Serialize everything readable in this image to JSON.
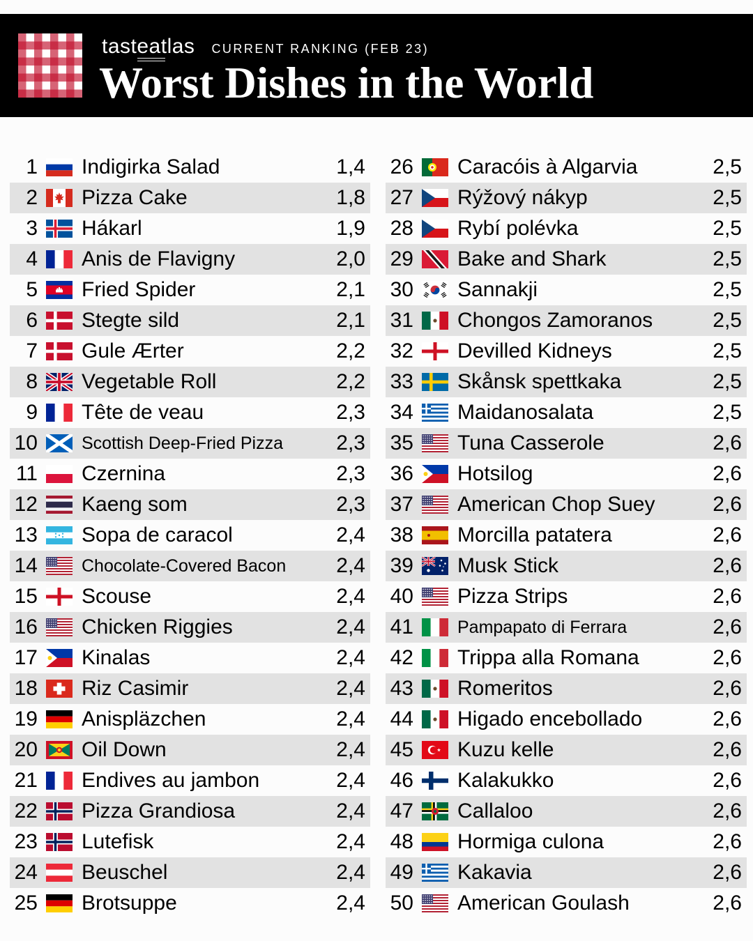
{
  "header": {
    "brand": {
      "pre": "tast",
      "underlined": "eat",
      "post": "las"
    },
    "ranking_label": "CURRENT RANKING (FEB 23)",
    "title": "Worst Dishes in the World"
  },
  "colors": {
    "header_bg": "#000000",
    "row_alt_bg": "#e2e2e2",
    "text": "#000000",
    "gingham_red": "#c1102d"
  },
  "list": {
    "rows": [
      {
        "rank": 1,
        "country": "Russia",
        "dish": "Indigirka Salad",
        "rating": "1,4"
      },
      {
        "rank": 2,
        "country": "Canada",
        "dish": "Pizza Cake",
        "rating": "1,8"
      },
      {
        "rank": 3,
        "country": "Iceland",
        "dish": "Hákarl",
        "rating": "1,9"
      },
      {
        "rank": 4,
        "country": "France",
        "dish": "Anis de Flavigny",
        "rating": "2,0"
      },
      {
        "rank": 5,
        "country": "Cambodia",
        "dish": "Fried Spider",
        "rating": "2,1"
      },
      {
        "rank": 6,
        "country": "Denmark",
        "dish": "Stegte sild",
        "rating": "2,1"
      },
      {
        "rank": 7,
        "country": "Denmark",
        "dish": "Gule Ærter",
        "rating": "2,2"
      },
      {
        "rank": 8,
        "country": "United Kingdom",
        "dish": "Vegetable Roll",
        "rating": "2,2"
      },
      {
        "rank": 9,
        "country": "France",
        "dish": "Tête de veau",
        "rating": "2,3"
      },
      {
        "rank": 10,
        "country": "Scotland",
        "dish": "Scottish Deep-Fried Pizza",
        "rating": "2,3"
      },
      {
        "rank": 11,
        "country": "Poland",
        "dish": "Czernina",
        "rating": "2,3"
      },
      {
        "rank": 12,
        "country": "Thailand",
        "dish": "Kaeng som",
        "rating": "2,3"
      },
      {
        "rank": 13,
        "country": "Honduras",
        "dish": "Sopa de caracol",
        "rating": "2,4"
      },
      {
        "rank": 14,
        "country": "United States",
        "dish": "Chocolate-Covered Bacon",
        "rating": "2,4"
      },
      {
        "rank": 15,
        "country": "England",
        "dish": "Scouse",
        "rating": "2,4"
      },
      {
        "rank": 16,
        "country": "United States",
        "dish": "Chicken Riggies",
        "rating": "2,4"
      },
      {
        "rank": 17,
        "country": "Philippines",
        "dish": "Kinalas",
        "rating": "2,4"
      },
      {
        "rank": 18,
        "country": "Switzerland",
        "dish": "Riz Casimir",
        "rating": "2,4"
      },
      {
        "rank": 19,
        "country": "Germany",
        "dish": "Anispläzchen",
        "rating": "2,4"
      },
      {
        "rank": 20,
        "country": "Grenada",
        "dish": "Oil Down",
        "rating": "2,4"
      },
      {
        "rank": 21,
        "country": "France",
        "dish": "Endives au jambon",
        "rating": "2,4"
      },
      {
        "rank": 22,
        "country": "Norway",
        "dish": "Pizza Grandiosa",
        "rating": "2,4"
      },
      {
        "rank": 23,
        "country": "Norway",
        "dish": "Lutefisk",
        "rating": "2,4"
      },
      {
        "rank": 24,
        "country": "Austria",
        "dish": "Beuschel",
        "rating": "2,4"
      },
      {
        "rank": 25,
        "country": "Germany",
        "dish": "Brotsuppe",
        "rating": "2,4"
      },
      {
        "rank": 26,
        "country": "Portugal",
        "dish": "Caracóis à Algarvia",
        "rating": "2,5"
      },
      {
        "rank": 27,
        "country": "Czech Republic",
        "dish": "Rýžový nákyp",
        "rating": "2,5"
      },
      {
        "rank": 28,
        "country": "Czech Republic",
        "dish": "Rybí polévka",
        "rating": "2,5"
      },
      {
        "rank": 29,
        "country": "Trinidad and Tobago",
        "dish": "Bake and Shark",
        "rating": "2,5"
      },
      {
        "rank": 30,
        "country": "South Korea",
        "dish": "Sannakji",
        "rating": "2,5"
      },
      {
        "rank": 31,
        "country": "Mexico",
        "dish": "Chongos Zamoranos",
        "rating": "2,5"
      },
      {
        "rank": 32,
        "country": "England",
        "dish": "Devilled Kidneys",
        "rating": "2,5"
      },
      {
        "rank": 33,
        "country": "Sweden",
        "dish": "Skånsk spettkaka",
        "rating": "2,5"
      },
      {
        "rank": 34,
        "country": "Greece",
        "dish": "Maidanosalata",
        "rating": "2,5"
      },
      {
        "rank": 35,
        "country": "United States",
        "dish": "Tuna Casserole",
        "rating": "2,6"
      },
      {
        "rank": 36,
        "country": "Philippines",
        "dish": "Hotsilog",
        "rating": "2,6"
      },
      {
        "rank": 37,
        "country": "United States",
        "dish": "American Chop Suey",
        "rating": "2,6"
      },
      {
        "rank": 38,
        "country": "Spain",
        "dish": "Morcilla patatera",
        "rating": "2,6"
      },
      {
        "rank": 39,
        "country": "Australia",
        "dish": "Musk Stick",
        "rating": "2,6"
      },
      {
        "rank": 40,
        "country": "United States",
        "dish": "Pizza Strips",
        "rating": "2,6"
      },
      {
        "rank": 41,
        "country": "Italy",
        "dish": "Pampapato di Ferrara",
        "rating": "2,6"
      },
      {
        "rank": 42,
        "country": "Italy",
        "dish": "Trippa alla Romana",
        "rating": "2,6"
      },
      {
        "rank": 43,
        "country": "Mexico",
        "dish": "Romeritos",
        "rating": "2,6"
      },
      {
        "rank": 44,
        "country": "Mexico",
        "dish": "Higado encebollado",
        "rating": "2,6"
      },
      {
        "rank": 45,
        "country": "Turkey",
        "dish": "Kuzu kelle",
        "rating": "2,6"
      },
      {
        "rank": 46,
        "country": "Finland",
        "dish": "Kalakukko",
        "rating": "2,6"
      },
      {
        "rank": 47,
        "country": "Dominica",
        "dish": "Callaloo",
        "rating": "2,6"
      },
      {
        "rank": 48,
        "country": "Colombia",
        "dish": "Hormiga culona",
        "rating": "2,6"
      },
      {
        "rank": 49,
        "country": "Greece",
        "dish": "Kakavia",
        "rating": "2,6"
      },
      {
        "rank": 50,
        "country": "United States",
        "dish": "American Goulash",
        "rating": "2,6"
      }
    ]
  }
}
